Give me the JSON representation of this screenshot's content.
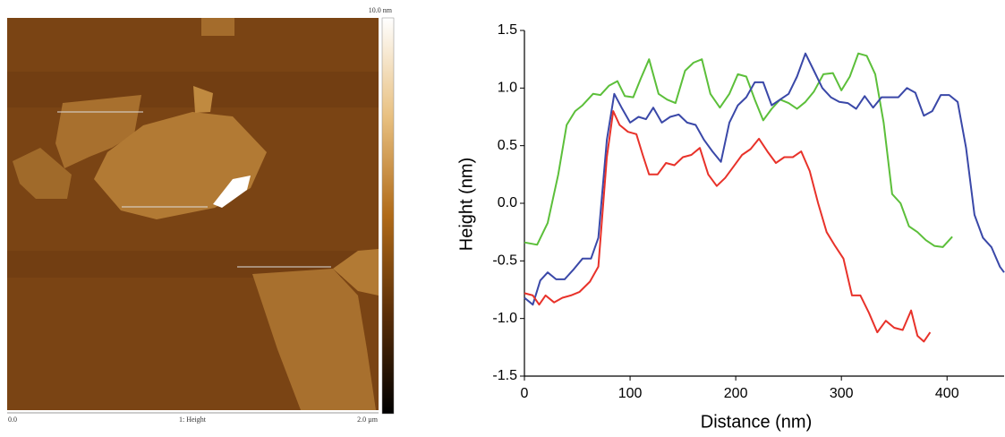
{
  "afm_image": {
    "scale_max": "10.0 nm",
    "x_start": "0.0",
    "channel": "1: Height",
    "x_end": "2.0 µm"
  },
  "chart_data": {
    "type": "line",
    "x_label": "Distance (nm)",
    "y_label": "Height (nm)",
    "xlim": [
      0,
      454
    ],
    "xticks": [
      0,
      100,
      200,
      300,
      400
    ],
    "ylim": [
      -1.5,
      1.5
    ],
    "yticks": [
      -1.5,
      {
        "value": -1,
        "label": "-1.0"
      },
      -0.5,
      {
        "value": 0,
        "label": "0.0"
      },
      0.5,
      {
        "value": 1,
        "label": "1.0"
      },
      1.5
    ],
    "series": [
      {
        "color": "#5cbf3a",
        "x": [
          0,
          12,
          22,
          32,
          40,
          48,
          55,
          65,
          72,
          80,
          88,
          95,
          103,
          110,
          118,
          127,
          135,
          143,
          152,
          160,
          168,
          176,
          185,
          194,
          202,
          210,
          218,
          226,
          234,
          242,
          250,
          258,
          266,
          274,
          283,
          292,
          300,
          308,
          316,
          324,
          332,
          340,
          348,
          356,
          364,
          372,
          380,
          388,
          396,
          405
        ],
        "values": [
          -0.34,
          -0.36,
          -0.17,
          0.25,
          0.68,
          0.8,
          0.85,
          0.95,
          0.94,
          1.02,
          1.06,
          0.93,
          0.92,
          1.08,
          1.25,
          0.95,
          0.9,
          0.87,
          1.15,
          1.22,
          1.25,
          0.95,
          0.83,
          0.95,
          1.12,
          1.1,
          0.9,
          0.72,
          0.82,
          0.9,
          0.87,
          0.82,
          0.88,
          0.97,
          1.12,
          1.13,
          0.98,
          1.1,
          1.3,
          1.28,
          1.12,
          0.7,
          0.08,
          0,
          -0.2,
          -0.25,
          -0.32,
          -0.37,
          -0.38,
          -0.29
        ]
      },
      {
        "color": "#3a48a8",
        "x": [
          0,
          8,
          15,
          22,
          30,
          38,
          46,
          55,
          63,
          70,
          78,
          85,
          92,
          100,
          108,
          115,
          122,
          130,
          138,
          146,
          154,
          162,
          170,
          178,
          186,
          194,
          202,
          210,
          218,
          226,
          234,
          242,
          250,
          258,
          266,
          274,
          282,
          290,
          298,
          306,
          314,
          322,
          330,
          338,
          346,
          354,
          362,
          370,
          378,
          386,
          394,
          402,
          410,
          418,
          426,
          434,
          442,
          450,
          454
        ],
        "values": [
          -0.82,
          -0.88,
          -0.67,
          -0.6,
          -0.66,
          -0.66,
          -0.58,
          -0.48,
          -0.48,
          -0.3,
          0.55,
          0.95,
          0.83,
          0.7,
          0.75,
          0.73,
          0.83,
          0.7,
          0.75,
          0.77,
          0.7,
          0.68,
          0.55,
          0.45,
          0.36,
          0.7,
          0.85,
          0.92,
          1.05,
          1.05,
          0.85,
          0.9,
          0.95,
          1.1,
          1.3,
          1.15,
          1,
          0.92,
          0.88,
          0.87,
          0.82,
          0.93,
          0.83,
          0.92,
          0.92,
          0.92,
          1,
          0.96,
          0.76,
          0.8,
          0.94,
          0.94,
          0.88,
          0.48,
          -0.1,
          -0.3,
          -0.38,
          -0.55,
          -0.6
        ]
      },
      {
        "color": "#e8322a",
        "x": [
          0,
          8,
          14,
          20,
          28,
          36,
          44,
          52,
          62,
          70,
          78,
          84,
          90,
          98,
          106,
          112,
          118,
          126,
          134,
          142,
          150,
          158,
          166,
          174,
          182,
          190,
          198,
          206,
          214,
          222,
          230,
          238,
          246,
          254,
          262,
          270,
          278,
          286,
          294,
          302,
          310,
          318,
          326,
          334,
          342,
          350,
          358,
          366,
          372,
          378,
          384
        ],
        "values": [
          -0.78,
          -0.8,
          -0.88,
          -0.8,
          -0.86,
          -0.82,
          -0.8,
          -0.77,
          -0.68,
          -0.55,
          0.4,
          0.8,
          0.68,
          0.62,
          0.6,
          0.42,
          0.25,
          0.25,
          0.35,
          0.33,
          0.4,
          0.42,
          0.48,
          0.25,
          0.15,
          0.22,
          0.32,
          0.42,
          0.47,
          0.56,
          0.45,
          0.35,
          0.4,
          0.4,
          0.45,
          0.28,
          0,
          -0.25,
          -0.37,
          -0.48,
          -0.8,
          -0.8,
          -0.95,
          -1.12,
          -1.02,
          -1.08,
          -1.1,
          -0.93,
          -1.15,
          -1.2,
          -1.12
        ]
      }
    ]
  }
}
